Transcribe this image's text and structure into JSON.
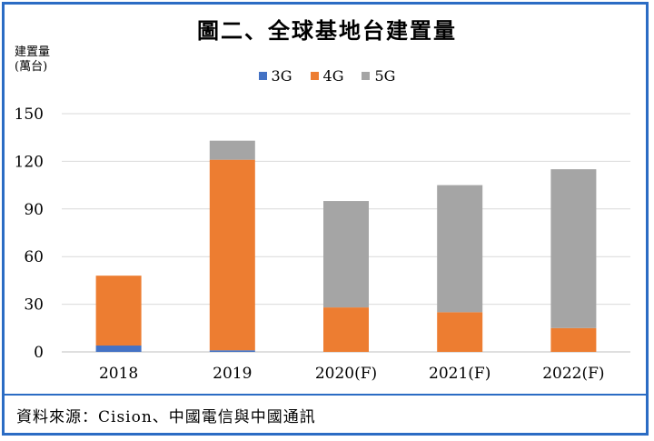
{
  "chart_data": {
    "type": "bar",
    "stacked": true,
    "title": "圖二、全球基地台建置量",
    "ylabel_line1": "建置量",
    "ylabel_line2": "(萬台)",
    "categories": [
      "2018",
      "2019",
      "2020(F)",
      "2021(F)",
      "2022(F)"
    ],
    "ylim": [
      0,
      150
    ],
    "yticks": [
      0,
      30,
      60,
      90,
      120,
      150
    ],
    "grid": true,
    "legend_position": "top-center",
    "series": [
      {
        "name": "3G",
        "color": "#4472c4",
        "values": [
          4,
          1,
          0,
          0,
          0
        ]
      },
      {
        "name": "4G",
        "color": "#ed7d31",
        "values": [
          44,
          120,
          28,
          25,
          15
        ]
      },
      {
        "name": "5G",
        "color": "#a5a5a5",
        "values": [
          0,
          12,
          67,
          80,
          100
        ]
      }
    ]
  },
  "source": "資料來源：Cision、中國電信與中國通訊",
  "colors": {
    "frame": "#2b6cc4",
    "grid": "#d9d9d9"
  }
}
